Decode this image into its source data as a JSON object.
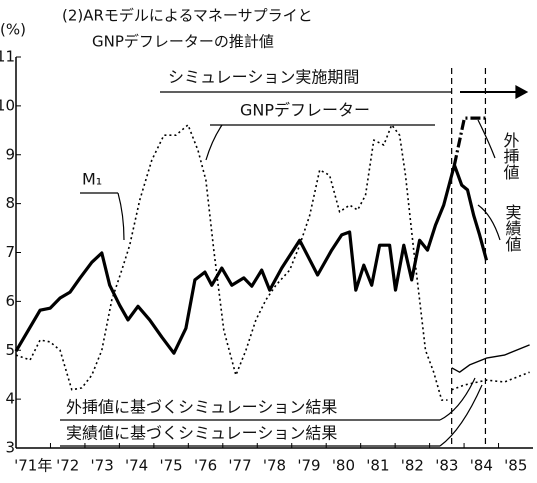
{
  "chart_data": {
    "type": "line",
    "title": [
      "(2)ARモデルによるマネーサプライと",
      "GNPデフレーターの推計値"
    ],
    "ylabel": "(%)",
    "xlim": [
      1971,
      1986
    ],
    "xticks": [
      {
        "value": 1971,
        "label": "'71年"
      },
      {
        "value": 1972,
        "label": "'72"
      },
      {
        "value": 1973,
        "label": "'73"
      },
      {
        "value": 1974,
        "label": "'74"
      },
      {
        "value": 1975,
        "label": "'75"
      },
      {
        "value": 1976,
        "label": "'76"
      },
      {
        "value": 1977,
        "label": "'77"
      },
      {
        "value": 1978,
        "label": "'78"
      },
      {
        "value": 1979,
        "label": "'79"
      },
      {
        "value": 1980,
        "label": "'80"
      },
      {
        "value": 1981,
        "label": "'81"
      },
      {
        "value": 1982,
        "label": "'82"
      },
      {
        "value": 1983,
        "label": "'83"
      },
      {
        "value": 1984,
        "label": "'84"
      },
      {
        "value": 1985,
        "label": "'85"
      }
    ],
    "ylim": [
      3,
      11
    ],
    "yticks": [
      3,
      4,
      5,
      6,
      7,
      8,
      9,
      10,
      11
    ],
    "grid": false,
    "simulation_period": [
      1983.64,
      1984.62
    ],
    "annotations": [
      "シミュレーション実施期間",
      "GNPデフレーター",
      "M₁",
      "外挿値",
      "実績値",
      "外挿値に基づくシミュレーション結果",
      "実績値に基づくシミュレーション結果"
    ],
    "series": [
      {
        "name": "M₁",
        "color": "#000",
        "style": "solid",
        "width": 3.2,
        "x": [
          1971.0,
          1971.7,
          1971.99,
          1972.28,
          1972.57,
          1972.86,
          1973.2,
          1973.49,
          1973.72,
          1974.01,
          1974.25,
          1974.54,
          1974.88,
          1975.23,
          1975.58,
          1975.93,
          1976.19,
          1976.48,
          1976.68,
          1976.97,
          1977.26,
          1977.61,
          1977.84,
          1978.13,
          1978.36,
          1978.71,
          1979.23,
          1979.75,
          1980.16,
          1980.45,
          1980.68,
          1980.86,
          1981.09,
          1981.32,
          1981.55,
          1981.84,
          1982.01,
          1982.25,
          1982.48,
          1982.71,
          1982.94,
          1983.17,
          1983.41,
          1983.72,
          1983.93,
          1984.1,
          1984.28,
          1984.45,
          1984.65
        ],
        "values": [
          4.98,
          5.82,
          5.86,
          6.07,
          6.19,
          6.48,
          6.8,
          6.99,
          6.33,
          5.92,
          5.62,
          5.9,
          5.62,
          5.27,
          4.94,
          5.45,
          6.44,
          6.6,
          6.33,
          6.68,
          6.33,
          6.48,
          6.31,
          6.64,
          6.23,
          6.68,
          7.25,
          6.54,
          7.05,
          7.36,
          7.42,
          6.23,
          6.74,
          6.33,
          7.15,
          7.15,
          6.23,
          7.15,
          6.44,
          7.25,
          7.05,
          7.56,
          7.97,
          8.79,
          8.38,
          8.28,
          7.76,
          7.36,
          6.84
        ]
      },
      {
        "name": "外挿値",
        "color": "#000",
        "style": "dashed",
        "width": 3.2,
        "x": [
          1983.72,
          1984.01,
          1984.65
        ],
        "values": [
          8.79,
          9.75,
          9.75
        ]
      },
      {
        "name": "GNPデフレーター",
        "color": "#000",
        "style": "dotted",
        "width": 1.6,
        "x": [
          1971.0,
          1971.41,
          1971.7,
          1971.99,
          1972.28,
          1972.62,
          1972.91,
          1973.2,
          1973.49,
          1973.78,
          1974.07,
          1974.3,
          1974.59,
          1974.94,
          1975.29,
          1975.64,
          1975.99,
          1976.28,
          1976.51,
          1976.74,
          1977.03,
          1977.38,
          1977.67,
          1977.96,
          1978.25,
          1978.54,
          1978.94,
          1979.23,
          1979.52,
          1979.81,
          1980.1,
          1980.39,
          1980.68,
          1980.91,
          1981.14,
          1981.38,
          1981.67,
          1981.9,
          1982.13,
          1982.3,
          1982.54,
          1982.71,
          1982.88,
          1983.12,
          1983.35,
          1983.52
        ],
        "values": [
          4.9,
          4.8,
          5.21,
          5.17,
          5.0,
          4.19,
          4.23,
          4.49,
          5.0,
          6.03,
          6.64,
          7.15,
          8.07,
          8.89,
          9.4,
          9.4,
          9.61,
          9.09,
          8.48,
          7.05,
          5.41,
          4.49,
          5.0,
          5.62,
          6.03,
          6.33,
          6.64,
          7.15,
          7.76,
          8.69,
          8.58,
          7.83,
          7.97,
          7.87,
          8.17,
          9.3,
          9.2,
          9.61,
          9.4,
          8.58,
          7.05,
          6.03,
          5.0,
          4.55,
          3.98,
          3.98
        ]
      },
      {
        "name": "外挿値に基づくシミュレーション結果",
        "color": "#000",
        "style": "solid",
        "width": 1.4,
        "x": [
          1983.64,
          1983.87,
          1984.16,
          1984.65,
          1985.17,
          1985.9
        ],
        "values": [
          4.64,
          4.55,
          4.7,
          4.84,
          4.9,
          5.11
        ]
      },
      {
        "name": "実績値に基づくシミュレーション結果",
        "color": "#000",
        "style": "dotted",
        "width": 1.6,
        "x": [
          1983.64,
          1984.01,
          1984.65,
          1985.17,
          1985.9
        ],
        "values": [
          4.19,
          4.29,
          4.39,
          4.35,
          4.55
        ]
      }
    ]
  }
}
